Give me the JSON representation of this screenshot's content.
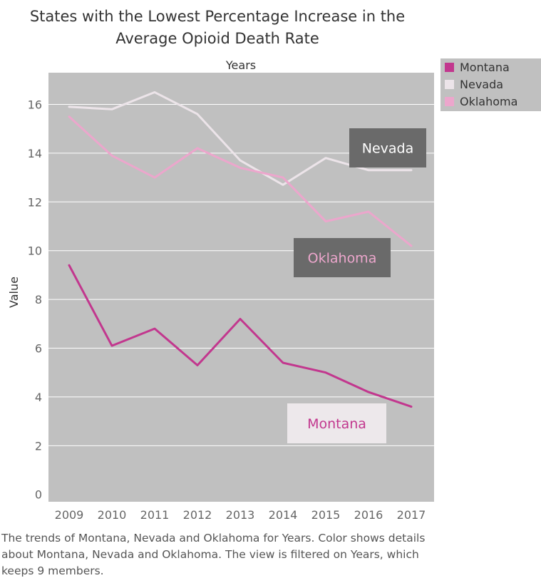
{
  "chart_data": {
    "type": "line",
    "title": "States with the Lowest Percentage Increase in the Average Opioid Death Rate",
    "title_lines": [
      "States with the Lowest Percentage Increase in the",
      "Average Opioid Death Rate"
    ],
    "xlabel": "Years",
    "ylabel": "Value",
    "categories": [
      "2009",
      "2010",
      "2011",
      "2012",
      "2013",
      "2014",
      "2015",
      "2016",
      "2017"
    ],
    "yticks": [
      0,
      2,
      4,
      6,
      8,
      10,
      12,
      14,
      16
    ],
    "ylim": [
      -0.3,
      17.3
    ],
    "grid": true,
    "legend_position": "top-right",
    "plot_background": "#c0c0c0",
    "series": [
      {
        "name": "Montana",
        "color": "#c2378e",
        "values": [
          9.4,
          6.1,
          6.8,
          5.3,
          7.2,
          5.4,
          5.0,
          4.2,
          3.6
        ]
      },
      {
        "name": "Nevada",
        "color": "#ece4e9",
        "values": [
          15.9,
          15.8,
          16.5,
          15.6,
          13.7,
          12.7,
          13.8,
          13.3,
          13.3
        ]
      },
      {
        "name": "Oklahoma",
        "color": "#eca6cc",
        "values": [
          15.5,
          13.9,
          13.0,
          14.2,
          13.4,
          13.0,
          11.2,
          11.6,
          10.2
        ]
      }
    ],
    "annotations": [
      {
        "text": "Nevada",
        "series": "Nevada",
        "box_color": "#6a6a6a",
        "text_color": "#ffffff"
      },
      {
        "text": "Oklahoma",
        "series": "Oklahoma",
        "box_color": "#6a6a6a",
        "text_color": "#eca6cc"
      },
      {
        "text": "Montana",
        "series": "Montana",
        "box_color": "#ede8eb",
        "text_color": "#c2378e"
      }
    ]
  },
  "legend": {
    "items": [
      {
        "label": "Montana",
        "color": "#c2378e"
      },
      {
        "label": "Nevada",
        "color": "#ece4e9"
      },
      {
        "label": "Oklahoma",
        "color": "#eca6cc"
      }
    ]
  },
  "footer": {
    "text": "The trends of Montana, Nevada and Oklahoma for Years.  Color shows details about Montana, Nevada and Oklahoma. The view is filtered on Years, which keeps 9 members."
  }
}
